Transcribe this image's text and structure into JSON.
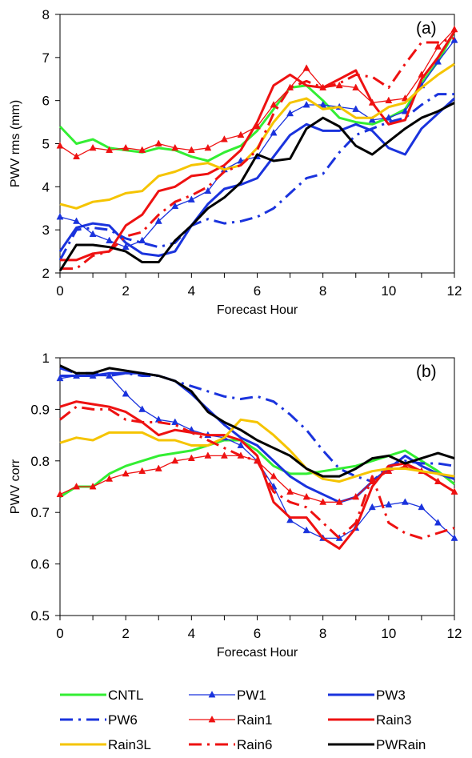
{
  "legend": [
    {
      "name": "CNTL",
      "color": "#33ee33",
      "dash": "solid",
      "marker": "none",
      "width": "thick"
    },
    {
      "name": "PW1",
      "color": "#1a33dd",
      "dash": "solid",
      "marker": "triangle",
      "width": "thin"
    },
    {
      "name": "PW3",
      "color": "#1a33dd",
      "dash": "solid",
      "marker": "none",
      "width": "thick"
    },
    {
      "name": "PW6",
      "color": "#1a33dd",
      "dash": "dashdot",
      "marker": "none",
      "width": "thick"
    },
    {
      "name": "Rain1",
      "color": "#ee1111",
      "dash": "solid",
      "marker": "triangle",
      "width": "thin"
    },
    {
      "name": "Rain3",
      "color": "#ee1111",
      "dash": "solid",
      "marker": "none",
      "width": "thick"
    },
    {
      "name": "Rain3L",
      "color": "#f5c400",
      "dash": "solid",
      "marker": "none",
      "width": "thick"
    },
    {
      "name": "Rain6",
      "color": "#ee1111",
      "dash": "dashdot",
      "marker": "none",
      "width": "thick"
    },
    {
      "name": "PWRain",
      "color": "#000000",
      "dash": "solid",
      "marker": "none",
      "width": "thick"
    }
  ],
  "chart_data": [
    {
      "type": "line",
      "panel_label": "(a)",
      "xlabel": "Forecast Hour",
      "ylabel": "PWV rms (mm)",
      "xlim": [
        0,
        12
      ],
      "ylim": [
        2,
        8
      ],
      "xticks": [
        0,
        2,
        4,
        6,
        8,
        10,
        12
      ],
      "yticks": [
        2,
        3,
        4,
        5,
        6,
        7,
        8
      ],
      "x": [
        0,
        0.5,
        1,
        1.5,
        2,
        2.5,
        3,
        3.5,
        4,
        4.5,
        5,
        5.5,
        6,
        6.5,
        7,
        7.5,
        8,
        8.5,
        9,
        9.5,
        10,
        10.5,
        11,
        11.5,
        12
      ],
      "series": [
        {
          "name": "CNTL",
          "values": [
            5.4,
            5.0,
            5.1,
            4.9,
            4.85,
            4.8,
            4.9,
            4.85,
            4.7,
            4.6,
            4.8,
            4.95,
            5.3,
            5.8,
            6.3,
            6.35,
            6.0,
            5.6,
            5.5,
            5.45,
            5.6,
            5.8,
            6.4,
            6.9,
            7.6
          ]
        },
        {
          "name": "PW1",
          "values": [
            3.3,
            3.2,
            2.9,
            2.75,
            2.6,
            2.75,
            3.2,
            3.55,
            3.7,
            3.9,
            4.4,
            4.6,
            4.7,
            5.25,
            5.7,
            5.9,
            5.9,
            5.85,
            5.8,
            5.55,
            5.6,
            5.75,
            6.35,
            6.9,
            7.4
          ]
        },
        {
          "name": "PW3",
          "values": [
            2.5,
            3.05,
            3.15,
            3.1,
            2.7,
            2.45,
            2.4,
            2.5,
            3.1,
            3.6,
            3.95,
            4.05,
            4.2,
            4.7,
            5.2,
            5.45,
            5.3,
            5.3,
            5.45,
            5.3,
            4.9,
            4.75,
            5.35,
            5.7,
            6.05
          ]
        },
        {
          "name": "PW6",
          "values": [
            2.3,
            3.0,
            3.05,
            3.0,
            2.8,
            2.7,
            2.6,
            2.7,
            3.1,
            3.25,
            3.15,
            3.2,
            3.3,
            3.5,
            3.85,
            4.2,
            4.3,
            4.8,
            5.2,
            5.35,
            5.5,
            5.6,
            5.9,
            6.15,
            6.15
          ]
        },
        {
          "name": "Rain1",
          "values": [
            4.95,
            4.7,
            4.9,
            4.85,
            4.9,
            4.85,
            5.0,
            4.9,
            4.85,
            4.9,
            5.1,
            5.2,
            5.4,
            5.9,
            6.3,
            6.75,
            6.3,
            6.35,
            6.3,
            5.95,
            6.0,
            6.05,
            6.6,
            7.25,
            7.65
          ]
        },
        {
          "name": "Rain3",
          "values": [
            2.3,
            2.3,
            2.45,
            2.5,
            3.1,
            3.35,
            3.9,
            4.0,
            4.25,
            4.3,
            4.5,
            4.85,
            5.5,
            6.35,
            6.6,
            6.35,
            6.3,
            6.5,
            6.7,
            5.95,
            5.45,
            5.55,
            6.5,
            7.0,
            7.6
          ]
        },
        {
          "name": "Rain3L",
          "values": [
            3.6,
            3.5,
            3.65,
            3.7,
            3.85,
            3.9,
            4.25,
            4.35,
            4.5,
            4.55,
            4.4,
            4.5,
            4.9,
            5.5,
            5.95,
            6.05,
            5.8,
            5.85,
            5.6,
            5.6,
            5.85,
            5.95,
            6.3,
            6.6,
            6.85
          ]
        },
        {
          "name": "Rain6",
          "values": [
            2.1,
            2.1,
            2.4,
            2.5,
            2.85,
            2.95,
            3.35,
            3.65,
            3.8,
            4.0,
            4.35,
            4.5,
            4.85,
            5.7,
            6.3,
            6.45,
            6.3,
            6.4,
            6.6,
            6.55,
            6.3,
            6.85,
            7.35,
            7.35,
            7.45
          ]
        },
        {
          "name": "PWRain",
          "values": [
            2.05,
            2.65,
            2.65,
            2.6,
            2.5,
            2.25,
            2.25,
            2.75,
            3.1,
            3.5,
            3.75,
            4.1,
            4.75,
            4.6,
            4.65,
            5.35,
            5.6,
            5.4,
            4.95,
            4.75,
            5.05,
            5.35,
            5.6,
            5.75,
            5.95
          ]
        }
      ]
    },
    {
      "type": "line",
      "panel_label": "(b)",
      "xlabel": "Forecast Hour",
      "ylabel": "PWV corr",
      "xlim": [
        0,
        12
      ],
      "ylim": [
        0.5,
        1
      ],
      "xticks": [
        0,
        2,
        4,
        6,
        8,
        10,
        12
      ],
      "yticks": [
        0.5,
        0.6,
        0.7,
        0.8,
        0.9,
        1
      ],
      "x": [
        0,
        0.5,
        1,
        1.5,
        2,
        2.5,
        3,
        3.5,
        4,
        4.5,
        5,
        5.5,
        6,
        6.5,
        7,
        7.5,
        8,
        8.5,
        9,
        9.5,
        10,
        10.5,
        11,
        11.5,
        12
      ],
      "series": [
        {
          "name": "CNTL",
          "values": [
            0.73,
            0.75,
            0.75,
            0.775,
            0.79,
            0.8,
            0.81,
            0.815,
            0.82,
            0.83,
            0.84,
            0.84,
            0.82,
            0.79,
            0.775,
            0.775,
            0.78,
            0.785,
            0.79,
            0.8,
            0.81,
            0.82,
            0.8,
            0.78,
            0.755
          ]
        },
        {
          "name": "PW1",
          "values": [
            0.96,
            0.965,
            0.965,
            0.965,
            0.93,
            0.9,
            0.88,
            0.875,
            0.86,
            0.85,
            0.845,
            0.83,
            0.8,
            0.75,
            0.685,
            0.665,
            0.65,
            0.65,
            0.67,
            0.71,
            0.715,
            0.72,
            0.71,
            0.68,
            0.65
          ]
        },
        {
          "name": "PW3",
          "values": [
            0.965,
            0.965,
            0.965,
            0.97,
            0.97,
            0.97,
            0.965,
            0.955,
            0.93,
            0.9,
            0.87,
            0.845,
            0.83,
            0.8,
            0.77,
            0.75,
            0.735,
            0.72,
            0.73,
            0.76,
            0.785,
            0.81,
            0.79,
            0.775,
            0.765
          ]
        },
        {
          "name": "PW6",
          "values": [
            0.98,
            0.97,
            0.97,
            0.965,
            0.97,
            0.965,
            0.965,
            0.955,
            0.945,
            0.935,
            0.925,
            0.92,
            0.925,
            0.915,
            0.89,
            0.86,
            0.82,
            0.785,
            0.77,
            0.76,
            0.79,
            0.8,
            0.795,
            0.795,
            0.79
          ]
        },
        {
          "name": "Rain1",
          "values": [
            0.735,
            0.75,
            0.75,
            0.765,
            0.775,
            0.78,
            0.785,
            0.8,
            0.805,
            0.81,
            0.81,
            0.81,
            0.8,
            0.77,
            0.74,
            0.73,
            0.72,
            0.72,
            0.73,
            0.76,
            0.78,
            0.79,
            0.78,
            0.76,
            0.74
          ]
        },
        {
          "name": "Rain3",
          "values": [
            0.905,
            0.915,
            0.91,
            0.905,
            0.895,
            0.875,
            0.85,
            0.86,
            0.855,
            0.85,
            0.85,
            0.84,
            0.81,
            0.72,
            0.69,
            0.69,
            0.65,
            0.63,
            0.67,
            0.75,
            0.79,
            0.795,
            0.78,
            0.76,
            0.74
          ]
        },
        {
          "name": "Rain3L",
          "values": [
            0.835,
            0.845,
            0.84,
            0.855,
            0.855,
            0.855,
            0.84,
            0.84,
            0.83,
            0.83,
            0.845,
            0.88,
            0.875,
            0.85,
            0.82,
            0.785,
            0.765,
            0.76,
            0.77,
            0.78,
            0.785,
            0.785,
            0.78,
            0.775,
            0.77
          ]
        },
        {
          "name": "Rain6",
          "values": [
            0.88,
            0.905,
            0.9,
            0.9,
            0.88,
            0.875,
            0.875,
            0.87,
            0.855,
            0.84,
            0.825,
            0.81,
            0.8,
            0.74,
            0.72,
            0.71,
            0.68,
            0.65,
            0.68,
            0.77,
            0.68,
            0.66,
            0.65,
            0.66,
            0.67
          ]
        },
        {
          "name": "PWRain",
          "values": [
            0.985,
            0.97,
            0.97,
            0.98,
            0.975,
            0.97,
            0.965,
            0.955,
            0.935,
            0.895,
            0.875,
            0.86,
            0.84,
            0.825,
            0.81,
            0.785,
            0.77,
            0.77,
            0.785,
            0.805,
            0.81,
            0.795,
            0.805,
            0.815,
            0.805
          ]
        }
      ]
    }
  ]
}
